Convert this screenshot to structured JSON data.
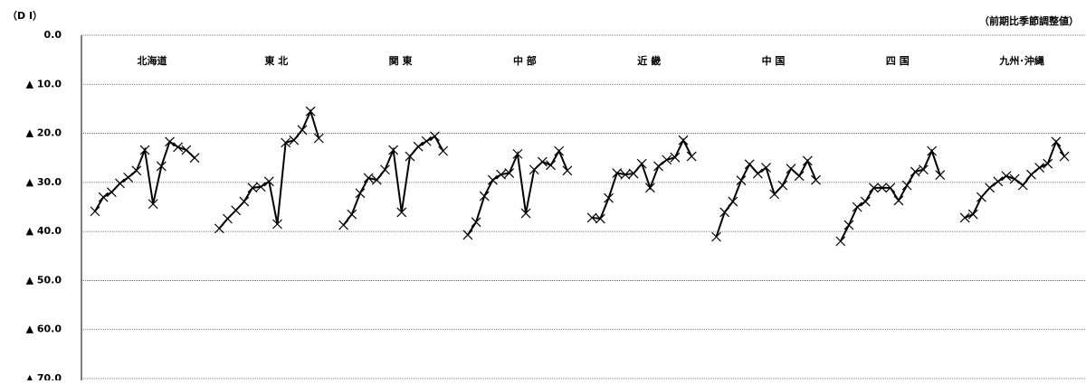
{
  "chart_data": {
    "type": "line",
    "y_label": "（D I）",
    "note": "（前期比季節調整値）",
    "ylim": [
      -70,
      0
    ],
    "yticks": [
      {
        "value": 0,
        "label": "0.0"
      },
      {
        "value": -10,
        "label": "▲ 10.0"
      },
      {
        "value": -20,
        "label": "▲ 20.0"
      },
      {
        "value": -30,
        "label": "▲ 30.0"
      },
      {
        "value": -40,
        "label": "▲ 40.0"
      },
      {
        "value": -50,
        "label": "▲ 50.0"
      },
      {
        "value": -60,
        "label": "▲ 60.0"
      },
      {
        "value": -70,
        "label": "▲ 70.0"
      }
    ],
    "grid": true,
    "color": "#000000",
    "series": [
      {
        "name": "北海道",
        "values": [
          -35.9,
          -33.0,
          -32.0,
          -30.2,
          -29.0,
          -27.6,
          -23.4,
          -34.4,
          -26.7,
          -21.7,
          -22.8,
          -23.4,
          -25.0
        ]
      },
      {
        "name": "東 北",
        "values": [
          -39.4,
          -37.4,
          -35.7,
          -33.9,
          -31.1,
          -30.9,
          -29.8,
          -38.5,
          -21.9,
          -21.4,
          -19.3,
          -15.5,
          -21.0
        ]
      },
      {
        "name": "関 東",
        "values": [
          -38.7,
          -36.5,
          -32.2,
          -29.1,
          -29.5,
          -27.4,
          -23.4,
          -36.1,
          -24.7,
          -22.7,
          -21.6,
          -20.6,
          -23.6
        ]
      },
      {
        "name": "中 部",
        "values": [
          -40.7,
          -38.1,
          -32.8,
          -29.5,
          -28.4,
          -28.1,
          -24.2,
          -36.3,
          -27.4,
          -25.8,
          -26.5,
          -23.6,
          -27.6
        ]
      },
      {
        "name": "近 畿",
        "values": [
          -37.2,
          -37.4,
          -33.2,
          -28.1,
          -28.4,
          -28.2,
          -26.2,
          -31.1,
          -26.7,
          -25.4,
          -24.9,
          -21.4,
          -24.7
        ]
      },
      {
        "name": "中 国",
        "values": [
          -41.1,
          -36.1,
          -33.9,
          -29.6,
          -26.3,
          -28.2,
          -27.0,
          -32.4,
          -30.6,
          -27.2,
          -28.7,
          -25.6,
          -29.5
        ]
      },
      {
        "name": "四 国",
        "values": [
          -42.0,
          -38.7,
          -35.0,
          -33.9,
          -31.1,
          -31.1,
          -31.1,
          -33.7,
          -30.6,
          -27.8,
          -27.4,
          -23.6,
          -28.5
        ]
      },
      {
        "name": "九州･沖縄",
        "values": [
          -37.2,
          -36.5,
          -33.0,
          -31.1,
          -29.8,
          -28.7,
          -29.3,
          -30.6,
          -28.4,
          -27.0,
          -26.2,
          -21.7,
          -24.7
        ]
      }
    ]
  }
}
